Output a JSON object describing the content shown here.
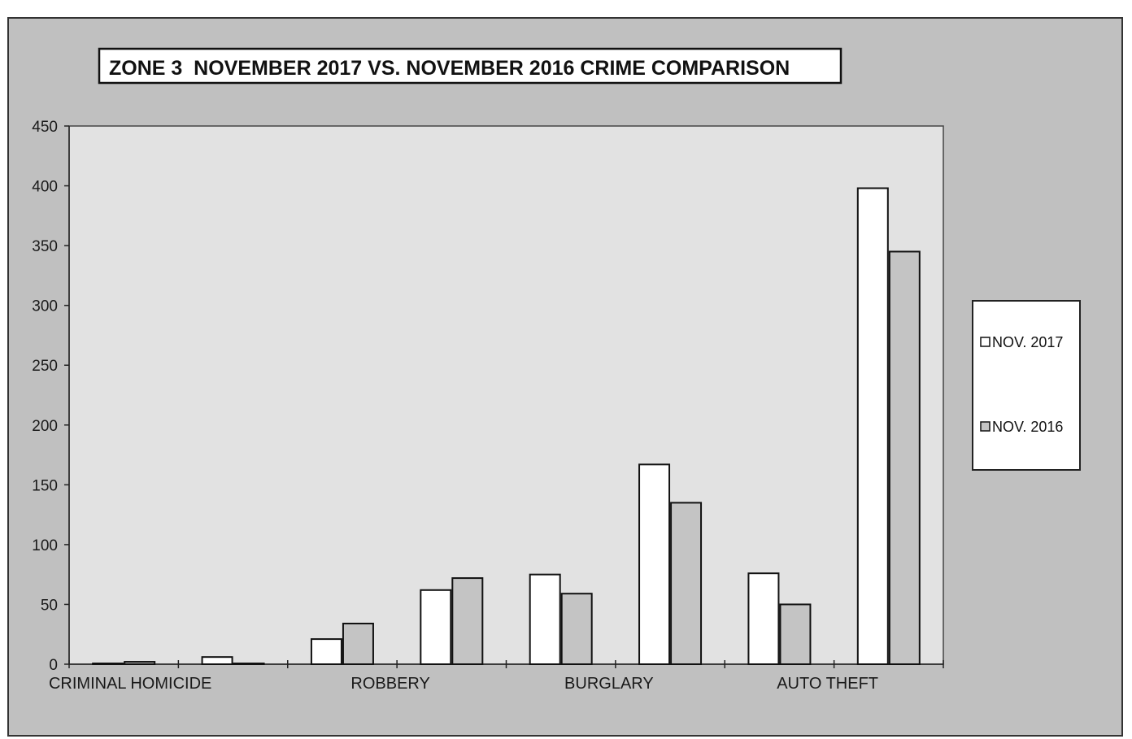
{
  "chart_data": {
    "type": "bar",
    "title": "ZONE 3  NOVEMBER 2017 VS. NOVEMBER 2016 CRIME COMPARISON",
    "ylim": [
      0,
      450
    ],
    "yticks": [
      0,
      50,
      100,
      150,
      200,
      250,
      300,
      350,
      400,
      450
    ],
    "categories": [
      "CRIMINAL HOMICIDE",
      "",
      "ROBBERY",
      "",
      "BURGLARY",
      "",
      "AUTO THEFT",
      ""
    ],
    "series": [
      {
        "name": "NOV. 2017",
        "values": [
          0,
          6,
          21,
          62,
          75,
          167,
          76,
          398
        ],
        "color": "#ffffff"
      },
      {
        "name": "NOV. 2016",
        "values": [
          2,
          0,
          34,
          72,
          59,
          135,
          50,
          345
        ],
        "color": "#c4c4c4"
      }
    ],
    "legend_position": "right",
    "grid": false,
    "colors": {
      "frame_background": "#c0c0c0",
      "plot_background": "#e2e2e2",
      "axis": "#222222"
    }
  }
}
